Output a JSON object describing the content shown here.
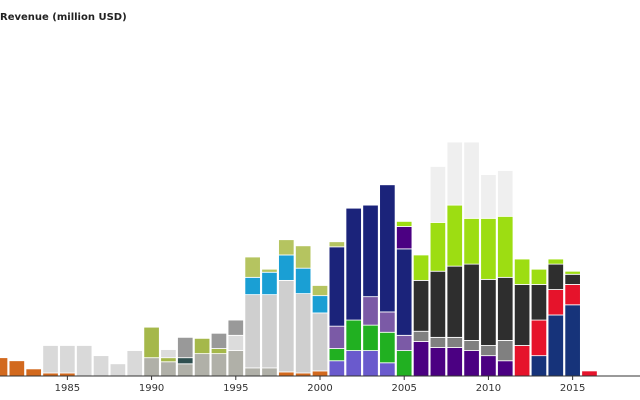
{
  "chart_data": {
    "type": "bar",
    "stacked": true,
    "title": "",
    "ylabel": "Revenue (million USD)",
    "xlabel": "",
    "x_tick_labels": [
      "1985",
      "1990",
      "1995",
      "2000",
      "2005",
      "2010",
      "2015"
    ],
    "x_ticks": [
      1985,
      1990,
      1995,
      2000,
      2005,
      2010,
      2015
    ],
    "xlim": [
      1981,
      2019
    ],
    "ylim": [
      0,
      350
    ],
    "grid": false,
    "legend": "none",
    "years": [
      1981,
      1982,
      1983,
      1984,
      1985,
      1986,
      1987,
      1988,
      1989,
      1990,
      1991,
      1992,
      1993,
      1994,
      1995,
      1996,
      1997,
      1998,
      1999,
      2000,
      2001,
      2002,
      2003,
      2004,
      2005,
      2006,
      2007,
      2008,
      2009,
      2010,
      2011,
      2012,
      2013,
      2014,
      2015,
      2016
    ],
    "series": [
      {
        "color": "#d2691e",
        "values": [
          18,
          15,
          7,
          3,
          3,
          0,
          0,
          0,
          0,
          0,
          0,
          0,
          0,
          0,
          0,
          0,
          0,
          4,
          3,
          5,
          0,
          0,
          0,
          0,
          0,
          0,
          0,
          0,
          0,
          0,
          0,
          0,
          0,
          0,
          0,
          0
        ]
      },
      {
        "color": "#d9d9d9",
        "values": [
          0,
          0,
          0,
          27,
          27,
          30,
          20,
          12,
          25,
          0,
          0,
          0,
          0,
          0,
          0,
          0,
          0,
          0,
          0,
          0,
          0,
          0,
          0,
          0,
          0,
          0,
          0,
          0,
          0,
          0,
          0,
          0,
          0,
          0,
          0,
          0
        ]
      },
      {
        "color": "#b0b0a8",
        "values": [
          0,
          0,
          0,
          0,
          0,
          0,
          0,
          0,
          0,
          18,
          14,
          12,
          22,
          22,
          25,
          8,
          8,
          0,
          0,
          0,
          0,
          0,
          0,
          0,
          0,
          0,
          0,
          0,
          0,
          0,
          0,
          0,
          0,
          0,
          0,
          0
        ]
      },
      {
        "color": "#2f4f4f",
        "values": [
          0,
          0,
          0,
          0,
          0,
          0,
          0,
          0,
          0,
          0,
          0,
          6,
          0,
          0,
          0,
          0,
          0,
          0,
          0,
          0,
          0,
          0,
          0,
          0,
          0,
          0,
          0,
          0,
          0,
          0,
          0,
          0,
          0,
          0,
          0,
          0
        ]
      },
      {
        "color": "#a5b84a",
        "values": [
          0,
          0,
          0,
          0,
          0,
          0,
          0,
          0,
          0,
          30,
          4,
          0,
          15,
          5,
          0,
          0,
          0,
          0,
          0,
          0,
          0,
          0,
          0,
          0,
          0,
          0,
          0,
          0,
          0,
          0,
          0,
          0,
          0,
          0,
          0,
          0
        ]
      },
      {
        "color": "#dcdcdc",
        "values": [
          0,
          0,
          0,
          0,
          0,
          0,
          0,
          0,
          0,
          0,
          8,
          0,
          0,
          0,
          15,
          0,
          0,
          0,
          0,
          0,
          0,
          0,
          0,
          0,
          0,
          0,
          0,
          0,
          0,
          0,
          0,
          0,
          0,
          0,
          0,
          0
        ]
      },
      {
        "color": "#999999",
        "values": [
          0,
          0,
          0,
          0,
          0,
          0,
          0,
          0,
          0,
          0,
          0,
          20,
          0,
          15,
          15,
          0,
          0,
          0,
          0,
          0,
          0,
          0,
          0,
          0,
          0,
          0,
          0,
          0,
          0,
          0,
          0,
          0,
          0,
          0,
          0,
          0
        ]
      },
      {
        "color": "#cfcfcf",
        "values": [
          0,
          0,
          0,
          0,
          0,
          0,
          0,
          0,
          0,
          0,
          0,
          0,
          0,
          0,
          0,
          72,
          72,
          90,
          78,
          57,
          0,
          0,
          0,
          0,
          0,
          0,
          0,
          0,
          0,
          0,
          0,
          0,
          0,
          0,
          0,
          0
        ]
      },
      {
        "color": "#1a9fd4",
        "values": [
          0,
          0,
          0,
          0,
          0,
          0,
          0,
          0,
          0,
          0,
          0,
          0,
          0,
          0,
          0,
          17,
          22,
          25,
          25,
          17,
          0,
          0,
          0,
          0,
          0,
          0,
          0,
          0,
          0,
          0,
          0,
          0,
          0,
          0,
          0,
          0
        ]
      },
      {
        "color": "#b5c460",
        "values": [
          0,
          0,
          0,
          0,
          0,
          0,
          0,
          0,
          0,
          0,
          0,
          0,
          0,
          0,
          0,
          20,
          3,
          15,
          22,
          10,
          0,
          0,
          0,
          0,
          0,
          0,
          0,
          0,
          0,
          0,
          0,
          0,
          0,
          0,
          0,
          0
        ]
      },
      {
        "color": "#6a5acd",
        "values": [
          0,
          0,
          0,
          0,
          0,
          0,
          0,
          0,
          0,
          0,
          0,
          0,
          0,
          0,
          0,
          0,
          0,
          0,
          0,
          0,
          15,
          25,
          25,
          13,
          0,
          0,
          0,
          0,
          0,
          0,
          0,
          0,
          0,
          0,
          0,
          0
        ]
      },
      {
        "color": "#21b021",
        "values": [
          0,
          0,
          0,
          0,
          0,
          0,
          0,
          0,
          0,
          0,
          0,
          0,
          0,
          0,
          0,
          0,
          0,
          0,
          0,
          0,
          12,
          30,
          25,
          30,
          25,
          0,
          0,
          0,
          0,
          0,
          0,
          0,
          0,
          0,
          0,
          0
        ]
      },
      {
        "color": "#7b5aa6",
        "values": [
          0,
          0,
          0,
          0,
          0,
          0,
          0,
          0,
          0,
          0,
          0,
          0,
          0,
          0,
          0,
          0,
          0,
          0,
          0,
          0,
          22,
          0,
          28,
          20,
          15,
          0,
          0,
          0,
          0,
          0,
          0,
          0,
          0,
          0,
          0,
          0
        ]
      },
      {
        "color": "#1b237a",
        "values": [
          0,
          0,
          0,
          0,
          0,
          0,
          0,
          0,
          0,
          0,
          0,
          0,
          0,
          0,
          0,
          0,
          0,
          0,
          0,
          0,
          78,
          110,
          90,
          125,
          85,
          0,
          0,
          0,
          0,
          0,
          0,
          0,
          0,
          0,
          0,
          0
        ]
      },
      {
        "color": "#b5c460",
        "values": [
          0,
          0,
          0,
          0,
          0,
          0,
          0,
          0,
          0,
          0,
          0,
          0,
          0,
          0,
          0,
          0,
          0,
          0,
          0,
          0,
          5,
          0,
          0,
          0,
          0,
          0,
          0,
          0,
          0,
          0,
          0,
          0,
          0,
          0,
          0,
          0
        ]
      },
      {
        "color": "#4b0082",
        "values": [
          0,
          0,
          0,
          0,
          0,
          0,
          0,
          0,
          0,
          0,
          0,
          0,
          0,
          0,
          0,
          0,
          0,
          0,
          0,
          0,
          0,
          0,
          0,
          0,
          22,
          34,
          28,
          28,
          25,
          20,
          15,
          0,
          0,
          0,
          0,
          0
        ]
      },
      {
        "color": "#16337a",
        "values": [
          0,
          0,
          0,
          0,
          0,
          0,
          0,
          0,
          0,
          0,
          0,
          0,
          0,
          0,
          0,
          0,
          0,
          0,
          0,
          0,
          0,
          0,
          0,
          0,
          0,
          0,
          0,
          0,
          0,
          0,
          0,
          0,
          20,
          60,
          70,
          0
        ]
      },
      {
        "color": "#e8e8e8",
        "values": [
          0,
          0,
          0,
          0,
          0,
          0,
          0,
          0,
          0,
          0,
          0,
          0,
          0,
          0,
          0,
          0,
          0,
          0,
          0,
          0,
          0,
          0,
          0,
          0,
          0,
          0,
          0,
          0,
          0,
          0,
          0,
          0,
          0,
          0,
          0,
          0
        ]
      },
      {
        "color": "#808080",
        "values": [
          0,
          0,
          0,
          0,
          0,
          0,
          0,
          0,
          0,
          0,
          0,
          0,
          0,
          0,
          0,
          0,
          0,
          0,
          0,
          0,
          0,
          0,
          0,
          0,
          0,
          10,
          10,
          10,
          10,
          10,
          20,
          0,
          0,
          0,
          0,
          0
        ]
      },
      {
        "color": "#e6132b",
        "values": [
          0,
          0,
          0,
          0,
          0,
          0,
          0,
          0,
          0,
          0,
          0,
          0,
          0,
          0,
          0,
          0,
          0,
          0,
          0,
          0,
          0,
          0,
          0,
          0,
          0,
          0,
          0,
          0,
          0,
          0,
          0,
          30,
          35,
          25,
          20,
          5
        ]
      },
      {
        "color": "#2e2e2e",
        "values": [
          0,
          0,
          0,
          0,
          0,
          0,
          0,
          0,
          0,
          0,
          0,
          0,
          0,
          0,
          0,
          0,
          0,
          0,
          0,
          0,
          0,
          0,
          0,
          0,
          0,
          50,
          65,
          70,
          75,
          65,
          62,
          60,
          35,
          25,
          10,
          0
        ]
      },
      {
        "color": "#9ddd12",
        "values": [
          0,
          0,
          0,
          0,
          0,
          0,
          0,
          0,
          0,
          0,
          0,
          0,
          0,
          0,
          0,
          0,
          0,
          0,
          0,
          0,
          0,
          0,
          0,
          0,
          5,
          25,
          48,
          60,
          45,
          60,
          60,
          25,
          15,
          5,
          3,
          0
        ]
      },
      {
        "color": "#efefef",
        "values": [
          0,
          0,
          0,
          0,
          0,
          0,
          0,
          0,
          0,
          0,
          0,
          0,
          0,
          0,
          0,
          0,
          0,
          0,
          0,
          0,
          0,
          0,
          0,
          0,
          0,
          0,
          55,
          62,
          75,
          43,
          45,
          0,
          0,
          0,
          0,
          0
        ]
      },
      {
        "color": "#85c1e9",
        "values": [
          0,
          0,
          0,
          0,
          0,
          0,
          0,
          0,
          0,
          0,
          0,
          0,
          0,
          0,
          0,
          0,
          0,
          0,
          0,
          0,
          0,
          0,
          0,
          0,
          0,
          0,
          0,
          0,
          0,
          0,
          0,
          0,
          0,
          0,
          0,
          0
        ]
      }
    ]
  }
}
